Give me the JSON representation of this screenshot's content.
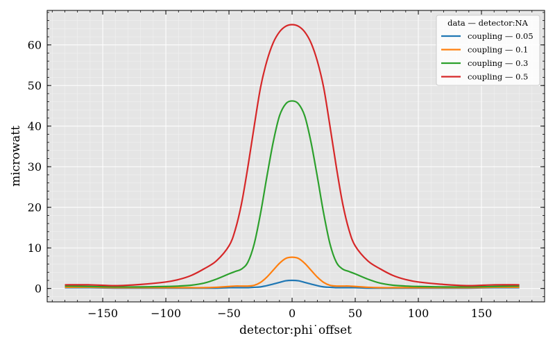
{
  "chart_data": {
    "type": "line",
    "title": "",
    "xlabel": "detector:phi˙offset",
    "ylabel": "microwatt",
    "xlim": [
      -194,
      200
    ],
    "ylim": [
      -3.3,
      68.5
    ],
    "xticks": [
      -150,
      -100,
      -50,
      0,
      50,
      100,
      150
    ],
    "yticks": [
      0,
      10,
      20,
      30,
      40,
      50,
      60
    ],
    "xtick_labels": [
      "−150",
      "−100",
      "−50",
      "0",
      "50",
      "100",
      "150"
    ],
    "ytick_labels": [
      "0",
      "10",
      "20",
      "30",
      "40",
      "50",
      "60"
    ],
    "grid": true,
    "legend": {
      "title": "data — detector:NA",
      "placement": "top-right"
    },
    "x": [
      -180,
      -160,
      -140,
      -120,
      -100,
      -90,
      -80,
      -70,
      -60,
      -50,
      -45,
      -40,
      -35,
      -30,
      -25,
      -20,
      -15,
      -10,
      -5,
      0,
      5,
      10,
      15,
      20,
      25,
      30,
      35,
      40,
      45,
      50,
      60,
      70,
      80,
      90,
      100,
      120,
      140,
      160,
      180
    ],
    "series": [
      {
        "name": "coupling — 0.05",
        "color": "#1f77b4",
        "values": [
          0.2,
          0.2,
          0.1,
          0.1,
          0.1,
          0.1,
          0.1,
          0.1,
          0.1,
          0.2,
          0.2,
          0.2,
          0.2,
          0.3,
          0.4,
          0.7,
          1.1,
          1.5,
          1.9,
          2.0,
          1.9,
          1.5,
          1.1,
          0.7,
          0.4,
          0.3,
          0.2,
          0.2,
          0.2,
          0.2,
          0.1,
          0.1,
          0.1,
          0.1,
          0.1,
          0.1,
          0.1,
          0.2,
          0.2
        ]
      },
      {
        "name": "coupling — 0.1",
        "color": "#ff7f0e",
        "values": [
          0.3,
          0.3,
          0.2,
          0.2,
          0.2,
          0.2,
          0.2,
          0.2,
          0.3,
          0.5,
          0.6,
          0.6,
          0.6,
          0.8,
          1.5,
          2.8,
          4.5,
          6.2,
          7.4,
          7.7,
          7.4,
          6.2,
          4.5,
          2.8,
          1.5,
          0.8,
          0.6,
          0.6,
          0.6,
          0.5,
          0.3,
          0.2,
          0.2,
          0.2,
          0.2,
          0.2,
          0.2,
          0.3,
          0.3
        ]
      },
      {
        "name": "coupling — 0.3",
        "color": "#2ca02c",
        "values": [
          0.6,
          0.5,
          0.4,
          0.4,
          0.5,
          0.6,
          0.8,
          1.3,
          2.3,
          3.6,
          4.2,
          4.8,
          6.5,
          11.0,
          18.5,
          27.5,
          36.0,
          42.5,
          45.5,
          46.2,
          45.5,
          42.5,
          36.0,
          27.5,
          18.5,
          11.0,
          6.5,
          4.8,
          4.2,
          3.6,
          2.3,
          1.3,
          0.8,
          0.6,
          0.5,
          0.4,
          0.4,
          0.5,
          0.6
        ]
      },
      {
        "name": "coupling — 0.5",
        "color": "#d62728",
        "values": [
          0.9,
          0.9,
          0.7,
          1.0,
          1.6,
          2.2,
          3.2,
          4.8,
          6.8,
          10.5,
          14.5,
          21.0,
          30.0,
          40.0,
          49.5,
          56.0,
          60.5,
          63.2,
          64.6,
          65.0,
          64.6,
          63.2,
          60.5,
          56.0,
          49.5,
          40.0,
          30.0,
          21.0,
          14.5,
          10.5,
          6.8,
          4.8,
          3.2,
          2.2,
          1.6,
          1.0,
          0.7,
          0.9,
          0.9
        ]
      }
    ]
  }
}
